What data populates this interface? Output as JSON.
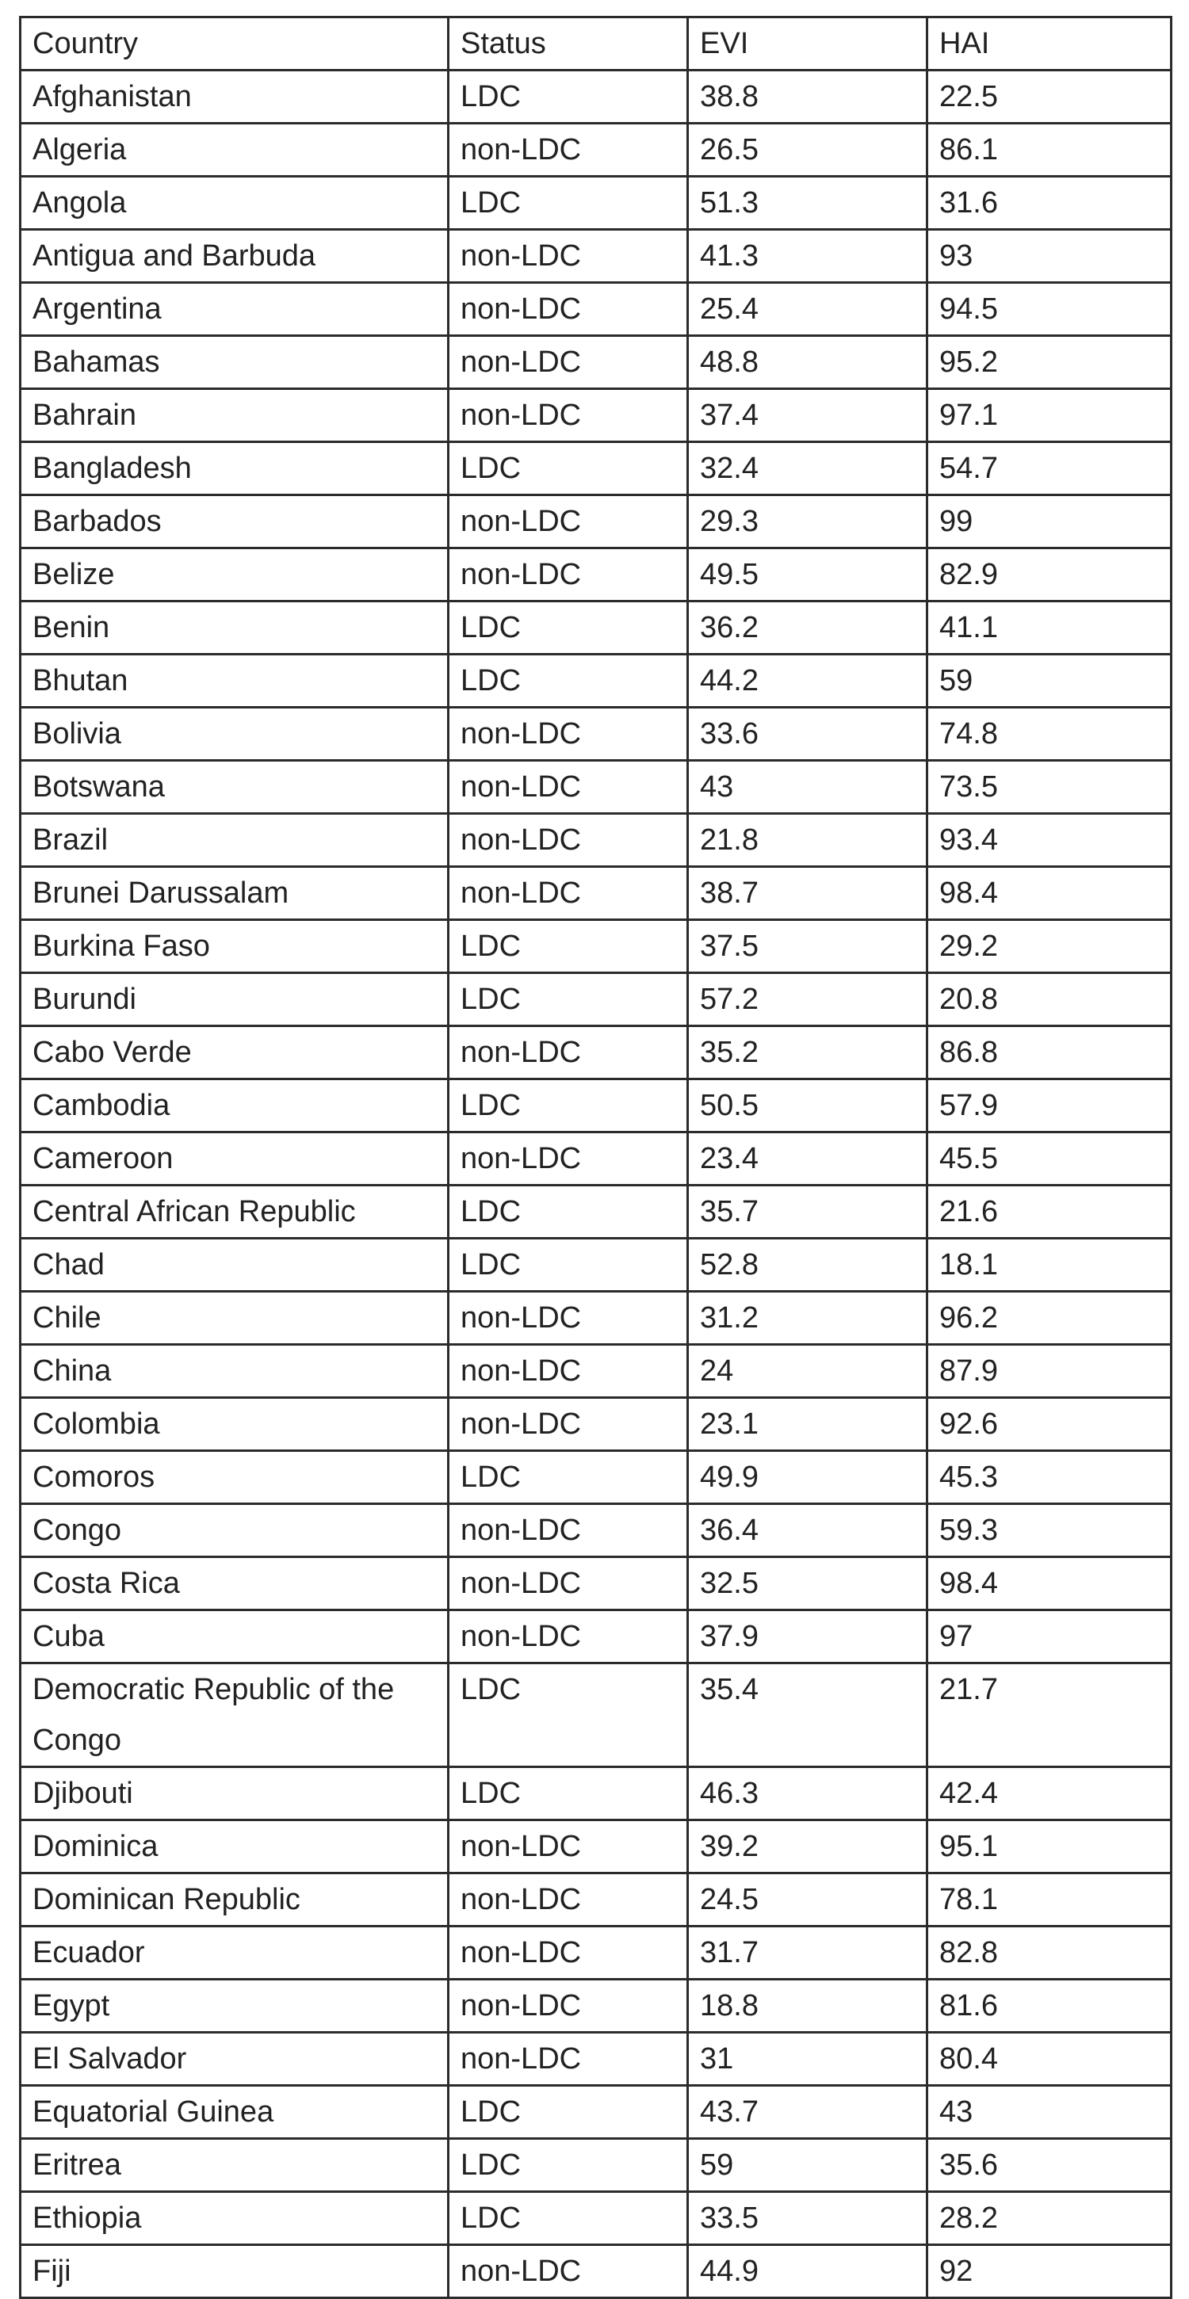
{
  "table": {
    "columns": [
      "Country",
      "Status",
      "EVI",
      "HAI"
    ],
    "rows": [
      [
        "Afghanistan",
        "LDC",
        "38.8",
        "22.5"
      ],
      [
        "Algeria",
        "non-LDC",
        "26.5",
        "86.1"
      ],
      [
        "Angola",
        "LDC",
        "51.3",
        "31.6"
      ],
      [
        "Antigua and Barbuda",
        "non-LDC",
        "41.3",
        "93"
      ],
      [
        "Argentina",
        "non-LDC",
        "25.4",
        "94.5"
      ],
      [
        "Bahamas",
        "non-LDC",
        "48.8",
        "95.2"
      ],
      [
        "Bahrain",
        "non-LDC",
        "37.4",
        "97.1"
      ],
      [
        "Bangladesh",
        "LDC",
        "32.4",
        "54.7"
      ],
      [
        "Barbados",
        "non-LDC",
        "29.3",
        "99"
      ],
      [
        "Belize",
        "non-LDC",
        "49.5",
        "82.9"
      ],
      [
        "Benin",
        "LDC",
        "36.2",
        "41.1"
      ],
      [
        "Bhutan",
        "LDC",
        "44.2",
        "59"
      ],
      [
        "Bolivia",
        "non-LDC",
        "33.6",
        "74.8"
      ],
      [
        "Botswana",
        "non-LDC",
        "43",
        "73.5"
      ],
      [
        "Brazil",
        "non-LDC",
        "21.8",
        "93.4"
      ],
      [
        "Brunei Darussalam",
        "non-LDC",
        "38.7",
        "98.4"
      ],
      [
        "Burkina Faso",
        "LDC",
        "37.5",
        "29.2"
      ],
      [
        "Burundi",
        "LDC",
        "57.2",
        "20.8"
      ],
      [
        "Cabo Verde",
        "non-LDC",
        "35.2",
        "86.8"
      ],
      [
        "Cambodia",
        "LDC",
        "50.5",
        "57.9"
      ],
      [
        "Cameroon",
        "non-LDC",
        "23.4",
        "45.5"
      ],
      [
        "Central African Republic",
        "LDC",
        "35.7",
        "21.6"
      ],
      [
        "Chad",
        "LDC",
        "52.8",
        "18.1"
      ],
      [
        "Chile",
        "non-LDC",
        "31.2",
        "96.2"
      ],
      [
        "China",
        "non-LDC",
        "24",
        "87.9"
      ],
      [
        "Colombia",
        "non-LDC",
        "23.1",
        "92.6"
      ],
      [
        "Comoros",
        "LDC",
        "49.9",
        "45.3"
      ],
      [
        "Congo",
        "non-LDC",
        "36.4",
        "59.3"
      ],
      [
        "Costa Rica",
        "non-LDC",
        "32.5",
        "98.4"
      ],
      [
        "Cuba",
        "non-LDC",
        "37.9",
        "97"
      ],
      [
        "Democratic Republic of the Congo",
        "LDC",
        "35.4",
        "21.7"
      ],
      [
        "Djibouti",
        "LDC",
        "46.3",
        "42.4"
      ],
      [
        "Dominica",
        "non-LDC",
        "39.2",
        "95.1"
      ],
      [
        "Dominican Republic",
        "non-LDC",
        "24.5",
        "78.1"
      ],
      [
        "Ecuador",
        "non-LDC",
        "31.7",
        "82.8"
      ],
      [
        "Egypt",
        "non-LDC",
        "18.8",
        "81.6"
      ],
      [
        "El Salvador",
        "non-LDC",
        "31",
        "80.4"
      ],
      [
        "Equatorial Guinea",
        "LDC",
        "43.7",
        "43"
      ],
      [
        "Eritrea",
        "LDC",
        "59",
        "35.6"
      ],
      [
        "Ethiopia",
        "LDC",
        "33.5",
        "28.2"
      ],
      [
        "Fiji",
        "non-LDC",
        "44.9",
        "92"
      ]
    ]
  }
}
